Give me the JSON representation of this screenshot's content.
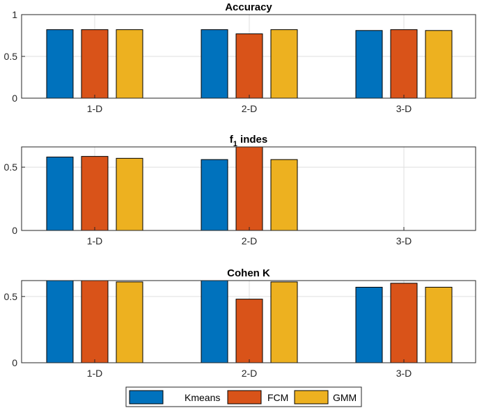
{
  "colors": {
    "Kmeans": "#0072BD",
    "FCM": "#D95319",
    "GMM": "#EDB120"
  },
  "legend": {
    "entries": [
      "Kmeans",
      "FCM",
      "GMM"
    ]
  },
  "chart_data": [
    {
      "type": "bar",
      "title": "Accuracy",
      "categories": [
        "1-D",
        "2-D",
        "3-D"
      ],
      "ylim": [
        0,
        1
      ],
      "yticks": [
        0,
        0.5,
        1
      ],
      "ytick_labels": [
        "0",
        "0.5",
        "1"
      ],
      "series": [
        {
          "name": "Kmeans",
          "values": [
            0.82,
            0.82,
            0.81
          ]
        },
        {
          "name": "FCM",
          "values": [
            0.82,
            0.77,
            0.82
          ]
        },
        {
          "name": "GMM",
          "values": [
            0.82,
            0.82,
            0.81
          ]
        }
      ]
    },
    {
      "type": "bar",
      "title": "f1 indes",
      "title_main": "f",
      "title_sub": "1",
      "title_rest": " indes",
      "categories": [
        "1-D",
        "2-D",
        "3-D"
      ],
      "ylim": [
        0,
        0.66
      ],
      "yticks": [
        0,
        0.5
      ],
      "ytick_labels": [
        "0",
        "0.5"
      ],
      "series": [
        {
          "name": "Kmeans",
          "values": [
            0.58,
            0.56,
            null
          ]
        },
        {
          "name": "FCM",
          "values": [
            0.585,
            0.66,
            null
          ]
        },
        {
          "name": "GMM",
          "values": [
            0.57,
            0.56,
            null
          ]
        }
      ]
    },
    {
      "type": "bar",
      "title": "Cohen K",
      "categories": [
        "1-D",
        "2-D",
        "3-D"
      ],
      "ylim": [
        0,
        0.62
      ],
      "yticks": [
        0,
        0.5
      ],
      "ytick_labels": [
        "0",
        "0.5"
      ],
      "series": [
        {
          "name": "Kmeans",
          "values": [
            0.62,
            0.62,
            0.57
          ]
        },
        {
          "name": "FCM",
          "values": [
            0.62,
            0.48,
            0.6
          ]
        },
        {
          "name": "GMM",
          "values": [
            0.61,
            0.61,
            0.57
          ]
        }
      ]
    }
  ]
}
